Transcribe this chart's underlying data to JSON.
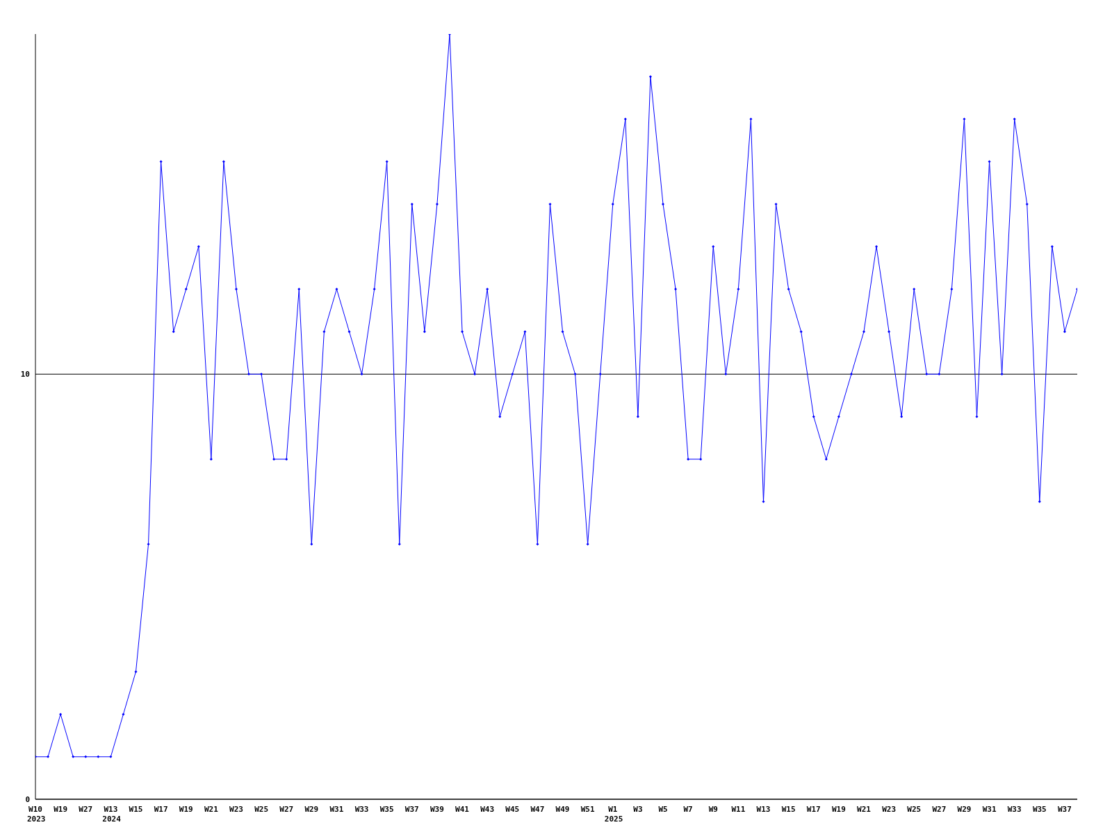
{
  "chart_data": {
    "type": "line",
    "categories": [
      "W10\n2023",
      null,
      "W19",
      null,
      "W27",
      null,
      "W13\n2024",
      null,
      "W15",
      null,
      "W17",
      null,
      "W19",
      null,
      "W21",
      null,
      "W23",
      null,
      "W25",
      null,
      "W27",
      null,
      "W29",
      null,
      "W31",
      null,
      "W33",
      null,
      "W35",
      null,
      "W37",
      null,
      "W39",
      null,
      "W41",
      null,
      "W43",
      null,
      "W45",
      null,
      "W47",
      null,
      "W49",
      null,
      "W51",
      null,
      "W1\n2025",
      null,
      "W3",
      null,
      "W5",
      null,
      "W7",
      null,
      "W9",
      null,
      "W11",
      null,
      "W13",
      null,
      "W15",
      null,
      "W17",
      null,
      "W19",
      null,
      "W21",
      null,
      "W23",
      null,
      "W25",
      null,
      "W27",
      null,
      "W29",
      null,
      "W31",
      null,
      "W33",
      null,
      "W35",
      null,
      "W37",
      null
    ],
    "series": [
      {
        "color": "#0000ff",
        "values": [
          1,
          1,
          2,
          1,
          1,
          1,
          1,
          2,
          3,
          6,
          15,
          11,
          12,
          13,
          8,
          15,
          12,
          10,
          10,
          8,
          8,
          12,
          6,
          11,
          12,
          11,
          10,
          12,
          15,
          6,
          14,
          11,
          14,
          18,
          11,
          10,
          12,
          9,
          10,
          11,
          6,
          14,
          11,
          10,
          6,
          10,
          14,
          16,
          9,
          17,
          14,
          12,
          8,
          8,
          13,
          10,
          12,
          16,
          7,
          14,
          12,
          11,
          9,
          8,
          9,
          10,
          11,
          13,
          11,
          9,
          12,
          10,
          10,
          12,
          16,
          9,
          15,
          10,
          16,
          14,
          7,
          13,
          11,
          12
        ]
      }
    ],
    "ylim": [
      0,
      18
    ],
    "yticks": [
      0,
      10
    ],
    "grid": "y",
    "marker": "diamond",
    "line_style": "solid"
  }
}
